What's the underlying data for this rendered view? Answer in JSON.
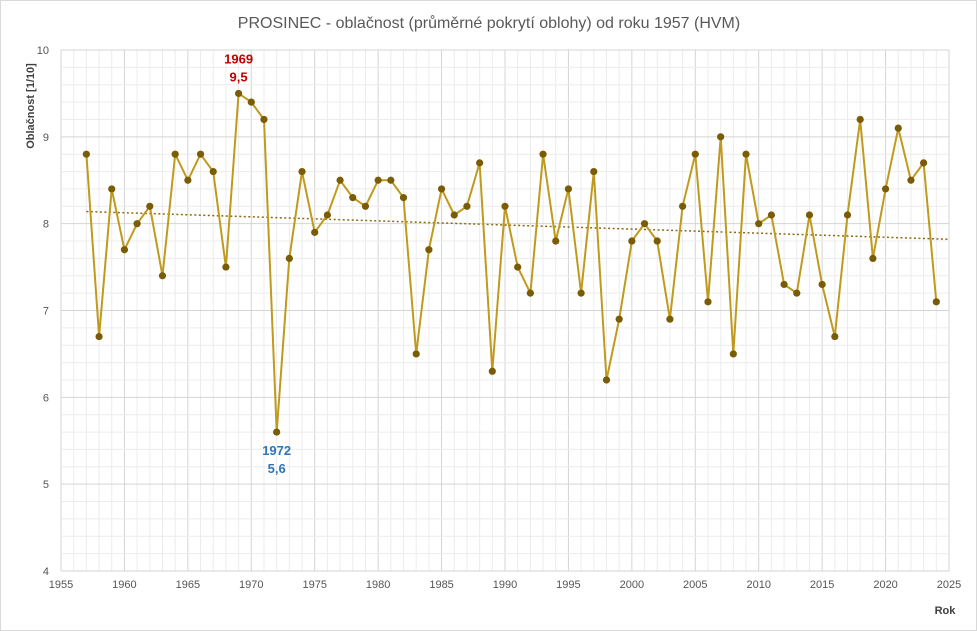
{
  "chart_data": {
    "type": "line",
    "title": "PROSINEC - oblačnost (průměrné pokrytí oblohy) od roku 1957 (HVM)",
    "xlabel": "Rok",
    "ylabel": "Oblačnost  [1/10]",
    "xlim": [
      1955,
      2025
    ],
    "ylim": [
      4,
      10
    ],
    "x_ticks": [
      1955,
      1960,
      1965,
      1970,
      1975,
      1980,
      1985,
      1990,
      1995,
      2000,
      2005,
      2010,
      2015,
      2020,
      2025
    ],
    "x_tick_labels": [
      "1955",
      "1960",
      "1965",
      "1970",
      "1975",
      "1980",
      "1985",
      "1990",
      "1995",
      "2000",
      "2005",
      "2010",
      "2015",
      "2020",
      "2025"
    ],
    "y_ticks": [
      4,
      5,
      6,
      7,
      8,
      9,
      10
    ],
    "y_tick_labels": [
      "4",
      "5",
      "6",
      "7",
      "8",
      "9",
      "10"
    ],
    "grid": true,
    "colors": {
      "line": "#c09a1e",
      "marker": "#7a5c07",
      "trend": "#8a6a10",
      "max_label": "#c00000",
      "min_label": "#2e75b6"
    },
    "series": [
      {
        "x": [
          1957,
          1958,
          1959,
          1960,
          1961,
          1962,
          1963,
          1964,
          1965,
          1966,
          1967,
          1968,
          1969,
          1970,
          1971,
          1972,
          1973,
          1974,
          1975,
          1976,
          1977,
          1978,
          1979,
          1980,
          1981,
          1982,
          1983,
          1984,
          1985,
          1986,
          1987,
          1988,
          1989,
          1990,
          1991,
          1992,
          1993,
          1994,
          1995,
          1996,
          1997,
          1998,
          1999,
          2000,
          2001,
          2002,
          2003,
          2004,
          2005,
          2006,
          2007,
          2008,
          2009,
          2010,
          2011,
          2012,
          2013,
          2014,
          2015,
          2016,
          2017,
          2018,
          2019,
          2020,
          2021,
          2022,
          2023,
          2024
        ],
        "values": [
          8.8,
          6.7,
          8.4,
          7.7,
          8.0,
          8.2,
          7.4,
          8.8,
          8.5,
          8.8,
          8.6,
          7.5,
          9.5,
          9.4,
          9.2,
          5.6,
          7.6,
          8.6,
          7.9,
          8.1,
          8.5,
          8.3,
          8.2,
          8.5,
          8.5,
          8.3,
          6.5,
          7.7,
          8.4,
          8.1,
          8.2,
          8.7,
          6.3,
          8.2,
          7.5,
          7.2,
          8.8,
          7.8,
          8.4,
          7.2,
          8.6,
          6.2,
          6.9,
          7.8,
          8.0,
          7.8,
          6.9,
          8.2,
          8.8,
          7.1,
          9.0,
          6.5,
          8.8,
          8.0,
          8.1,
          7.3,
          7.2,
          8.1,
          7.3,
          6.7,
          8.1,
          9.2,
          7.6,
          8.4,
          9.1,
          8.5,
          8.7,
          7.1
        ]
      }
    ],
    "trendline": {
      "type": "linear",
      "x": [
        1957,
        2025
      ],
      "values": [
        8.14,
        7.82
      ]
    },
    "annotations": [
      {
        "year_label": "1969",
        "value_label": "9,5",
        "x": 1969,
        "y": 9.5,
        "kind": "max"
      },
      {
        "year_label": "1972",
        "value_label": "5,6",
        "x": 1972,
        "y": 5.6,
        "kind": "min"
      }
    ]
  }
}
